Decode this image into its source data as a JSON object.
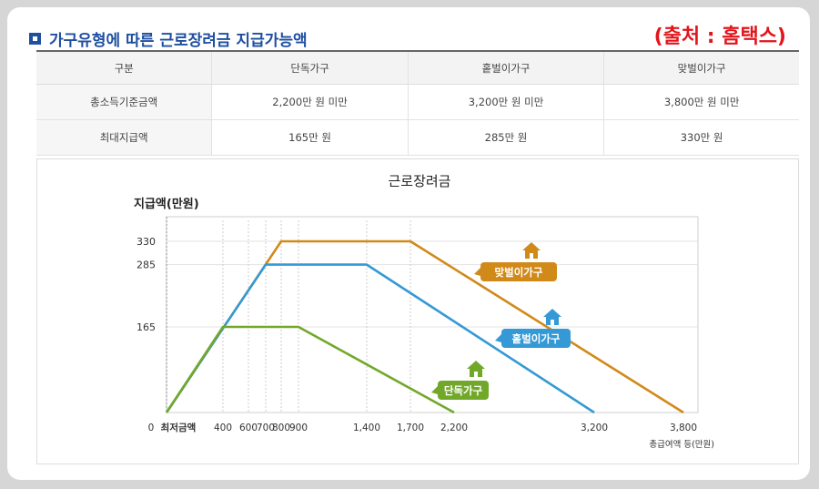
{
  "header": {
    "title": "가구유형에 따른 근로장려금 지급가능액",
    "source": "(출처 : 홈택스)"
  },
  "table": {
    "headers": [
      "구분",
      "단독가구",
      "홑벌이가구",
      "맞벌이가구"
    ],
    "rows": [
      [
        "총소득기준금액",
        "2,200만 원 미만",
        "3,200만 원 미만",
        "3,800만 원 미만"
      ],
      [
        "최대지급액",
        "165만 원",
        "285만 원",
        "330만 원"
      ]
    ]
  },
  "colors": {
    "single": "#72a82a",
    "single_earner": "#3499d5",
    "dual_earner": "#d18a1a",
    "title_blue": "#1f4fa0",
    "source_red": "#e3151b"
  },
  "chart_data": {
    "type": "line",
    "title": "근로장려금",
    "ylabel": "지급액(만원)",
    "xlabel": "총급여액 등(만원)",
    "x_ticks": [
      {
        "value": 0,
        "label": "0"
      },
      {
        "value": 150,
        "label": "최저금액"
      },
      {
        "value": 400,
        "label": "400"
      },
      {
        "value": 600,
        "label": "600"
      },
      {
        "value": 700,
        "label": "700"
      },
      {
        "value": 800,
        "label": "800"
      },
      {
        "value": 900,
        "label": "900"
      },
      {
        "value": 1400,
        "label": "1,400"
      },
      {
        "value": 1700,
        "label": "1,700"
      },
      {
        "value": 2200,
        "label": "2,200"
      },
      {
        "value": 3200,
        "label": "3,200"
      },
      {
        "value": 3800,
        "label": "3,800"
      }
    ],
    "y_ticks": [
      165,
      285,
      330
    ],
    "xlim": [
      0,
      4000
    ],
    "ylim": [
      0,
      360
    ],
    "series": [
      {
        "name": "맞벌이가구",
        "color": "#d18a1a",
        "points": [
          [
            0,
            0
          ],
          [
            800,
            330
          ],
          [
            1700,
            330
          ],
          [
            3800,
            0
          ]
        ]
      },
      {
        "name": "홑벌이가구",
        "color": "#3499d5",
        "points": [
          [
            0,
            0
          ],
          [
            700,
            285
          ],
          [
            1400,
            285
          ],
          [
            3200,
            0
          ]
        ]
      },
      {
        "name": "단독가구",
        "color": "#72a82a",
        "points": [
          [
            0,
            0
          ],
          [
            400,
            165
          ],
          [
            900,
            165
          ],
          [
            2200,
            0
          ]
        ]
      }
    ],
    "guides_x": [
      400,
      600,
      700,
      800,
      900,
      1400,
      1700
    ]
  }
}
